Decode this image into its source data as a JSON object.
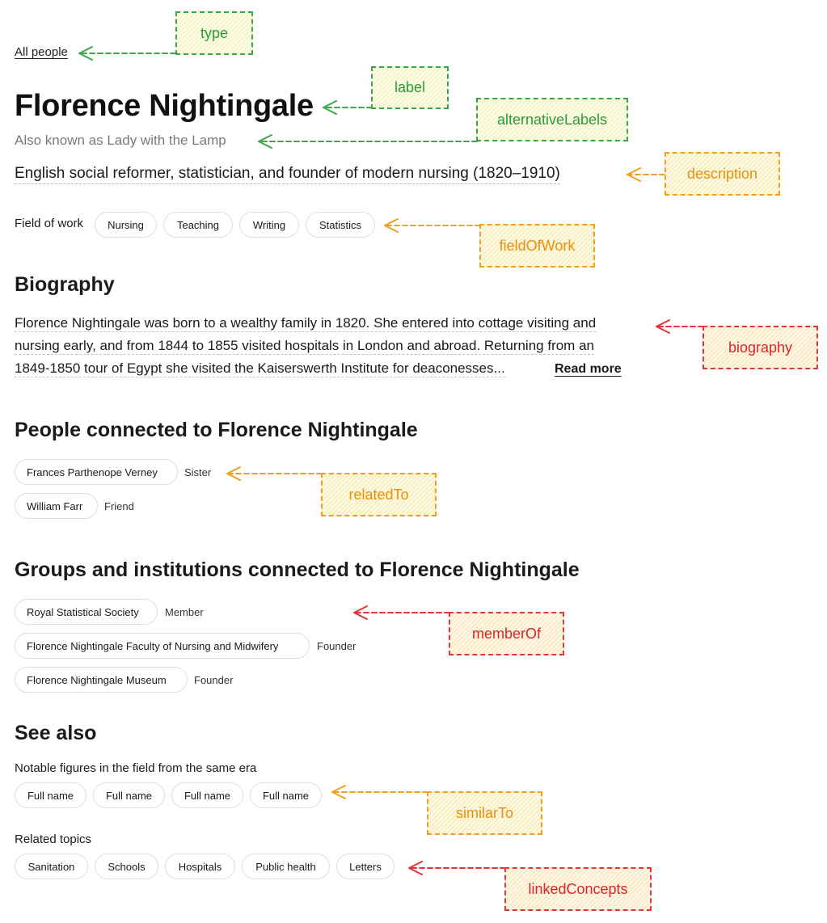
{
  "profile": {
    "type_link": "All people",
    "title": "Florence Nightingale",
    "alt_label": "Also known as Lady with the Lamp",
    "description": "English social reformer, statistician, and founder of modern nursing (1820–1910)",
    "field_of_work": {
      "label": "Field of work",
      "items": [
        "Nursing",
        "Teaching",
        "Writing",
        "Statistics"
      ]
    }
  },
  "biography": {
    "heading": "Biography",
    "lines": [
      "Florence Nightingale was born to a wealthy family in 1820. She entered into cottage visiting and",
      "nursing early, and from 1844 to 1855 visited hospitals in London and abroad. Returning from an",
      "1849-1850 tour of Egypt she visited the Kaiserswerth Institute for deaconesses..."
    ],
    "read_more": "Read more"
  },
  "people": {
    "heading": "People connected to Florence Nightingale",
    "items": [
      {
        "name": "Frances Parthenope Verney",
        "role": "Sister"
      },
      {
        "name": "William Farr",
        "role": "Friend"
      }
    ]
  },
  "groups": {
    "heading": "Groups and institutions connected to Florence Nightingale",
    "items": [
      {
        "name": "Royal Statistical Society",
        "role": "Member"
      },
      {
        "name": "Florence Nightingale Faculty of Nursing and Midwifery",
        "role": "Founder"
      },
      {
        "name": "Florence Nightingale Museum",
        "role": "Founder"
      }
    ]
  },
  "see_also": {
    "heading": "See also",
    "similar_label": "Notable figures in the field from the same era",
    "similar_items": [
      "Full name",
      "Full name",
      "Full name",
      "Full name"
    ],
    "topics_label": "Related topics",
    "topics": [
      "Sanitation",
      "Schools",
      "Hospitals",
      "Public health",
      "Letters"
    ]
  },
  "annotations": {
    "type": "type",
    "label": "label",
    "alternative_labels": "alternativeLabels",
    "description": "description",
    "field_of_work": "fieldOfWork",
    "biography": "biography",
    "related_to": "relatedTo",
    "member_of": "memberOf",
    "similar_to": "similarTo",
    "linked_concepts": "linkedConcepts"
  },
  "colors": {
    "green": "#3aa84a",
    "orange": "#f0a020",
    "red": "#e0363a"
  }
}
